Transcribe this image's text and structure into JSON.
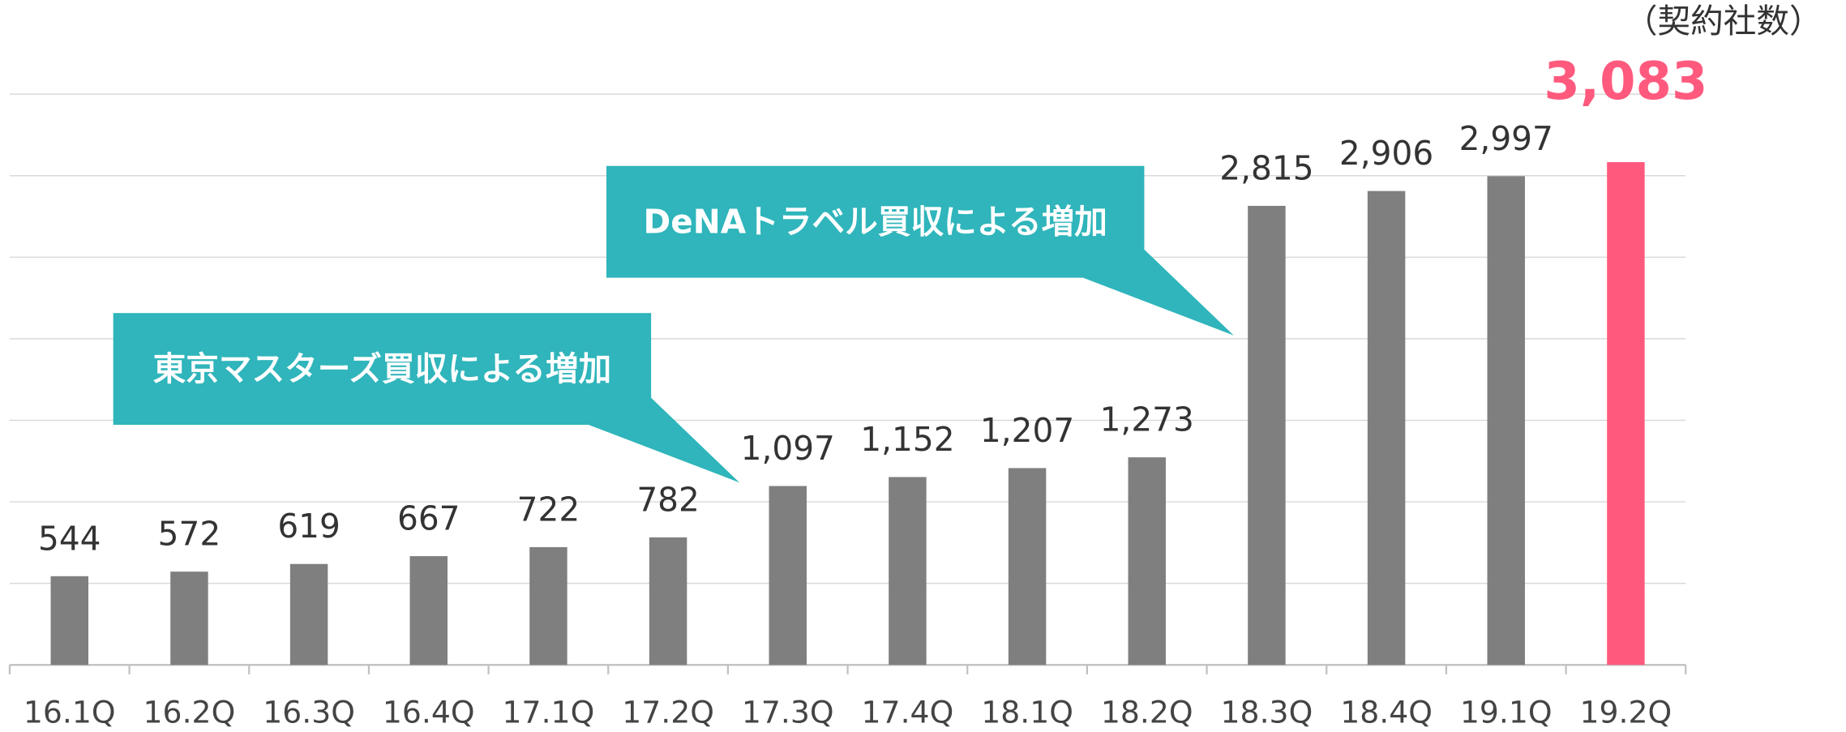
{
  "chart_data": {
    "type": "bar",
    "unit_label": "（契約社数）",
    "categories": [
      "16.1Q",
      "16.2Q",
      "16.3Q",
      "16.4Q",
      "17.1Q",
      "17.2Q",
      "17.3Q",
      "17.4Q",
      "18.1Q",
      "18.2Q",
      "18.3Q",
      "18.4Q",
      "19.1Q",
      "19.2Q"
    ],
    "values": [
      544,
      572,
      619,
      667,
      722,
      782,
      1097,
      1152,
      1207,
      1273,
      2815,
      2906,
      2997,
      3083
    ],
    "value_labels": [
      "544",
      "572",
      "619",
      "667",
      "722",
      "782",
      "1,097",
      "1,152",
      "1,207",
      "1,273",
      "2,815",
      "2,906",
      "2,997",
      "3,083"
    ],
    "colors": [
      "#7f7f7f",
      "#7f7f7f",
      "#7f7f7f",
      "#7f7f7f",
      "#7f7f7f",
      "#7f7f7f",
      "#7f7f7f",
      "#7f7f7f",
      "#7f7f7f",
      "#7f7f7f",
      "#7f7f7f",
      "#7f7f7f",
      "#7f7f7f",
      "#ff5a7e"
    ],
    "ylim": [
      0,
      3500
    ],
    "yticks": [
      0,
      500,
      1000,
      1500,
      2000,
      2500,
      3000,
      3500
    ],
    "grid": true,
    "annotations": [
      "東京マスターズ買収による増加",
      "DeNAトラベル買収による増加"
    ],
    "annotation_color": "#2fb5bb"
  }
}
